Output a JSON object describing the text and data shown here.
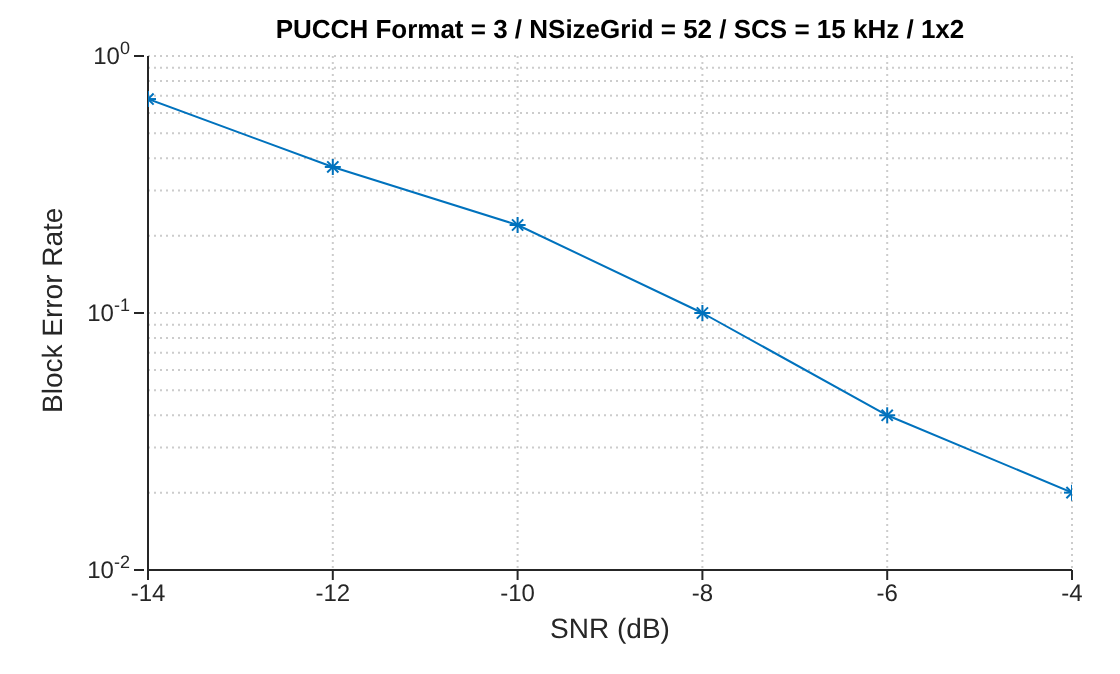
{
  "chart_data": {
    "type": "line",
    "title": "PUCCH Format = 3 / NSizeGrid = 52 / SCS = 15 kHz / 1x2",
    "xlabel": "SNR (dB)",
    "ylabel": "Block Error Rate",
    "x": [
      -14,
      -12,
      -10,
      -8,
      -6,
      -4
    ],
    "series": [
      {
        "color": "#0072bd",
        "values": [
          0.68,
          0.37,
          0.22,
          0.1,
          0.04,
          0.02
        ]
      }
    ],
    "xlim": [
      -14,
      -4
    ],
    "xticks": [
      -14,
      -12,
      -10,
      -8,
      -6,
      -4
    ],
    "ylim": [
      0.01,
      1
    ],
    "log": "y",
    "yticks": [
      {
        "value": 0.01,
        "label": "10$^{-2}$"
      },
      {
        "value": 0.02,
        "label": null
      },
      {
        "value": 0.03,
        "label": null
      },
      {
        "value": 0.04,
        "label": null
      },
      {
        "value": 0.05,
        "label": null
      },
      {
        "value": 0.06,
        "label": null
      },
      {
        "value": 0.07,
        "label": null
      },
      {
        "value": 0.08,
        "label": null
      },
      {
        "value": 0.09,
        "label": null
      },
      {
        "value": 0.1,
        "label": "10$^{-1}$"
      },
      {
        "value": 0.2,
        "label": null
      },
      {
        "value": 0.3,
        "label": null
      },
      {
        "value": 0.4,
        "label": null
      },
      {
        "value": 0.5,
        "label": null
      },
      {
        "value": 0.6,
        "label": null
      },
      {
        "value": 0.7,
        "label": null
      },
      {
        "value": 0.8,
        "label": null
      },
      {
        "value": 0.9,
        "label": null
      },
      {
        "value": 1,
        "label": "10$^{0}$"
      }
    ],
    "grid": true,
    "marker": "cross",
    "line_style": "solid",
    "legend": false
  }
}
